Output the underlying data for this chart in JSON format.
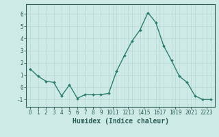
{
  "x": [
    0,
    1,
    2,
    3,
    4,
    5,
    6,
    7,
    8,
    9,
    10,
    11,
    12,
    13,
    14,
    15,
    16,
    17,
    18,
    19,
    20,
    21,
    22,
    23
  ],
  "y": [
    1.5,
    0.9,
    0.5,
    0.4,
    -0.7,
    0.2,
    -0.9,
    -0.6,
    -0.6,
    -0.6,
    -0.5,
    1.3,
    2.6,
    3.8,
    4.7,
    6.1,
    5.3,
    3.4,
    2.2,
    0.9,
    0.4,
    -0.7,
    -1.0,
    -1.0
  ],
  "line_color": "#2e7d6e",
  "marker": "D",
  "marker_size": 2.0,
  "line_width": 1.0,
  "bg_color": "#ceeae7",
  "grid_color": "#b8d8d5",
  "xlabel": "Humidex (Indice chaleur)",
  "xlabel_fontsize": 7,
  "yticks": [
    -1,
    0,
    1,
    2,
    3,
    4,
    5,
    6
  ],
  "xtick_labels": [
    "0",
    "1",
    "2",
    "3",
    "4",
    "5",
    "6",
    "7",
    "8",
    "9",
    "1011",
    "1213",
    "1415",
    "1617",
    "1819",
    "2021",
    "2223"
  ],
  "ylim": [
    -1.6,
    6.8
  ],
  "xlim": [
    -0.5,
    23.5
  ],
  "tick_fontsize": 5.5,
  "tick_color": "#2a5c55",
  "spine_color": "#2a5c55"
}
